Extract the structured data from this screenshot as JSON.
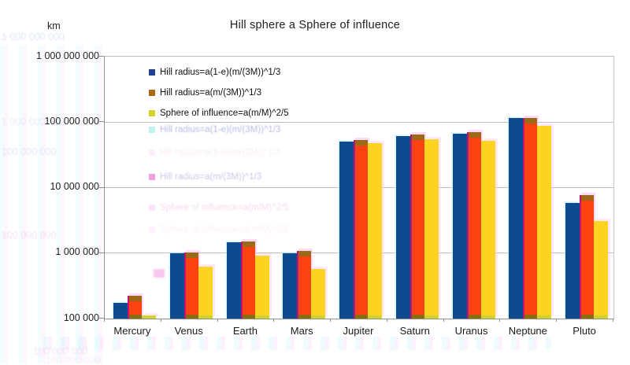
{
  "header": {
    "unit_label": "km",
    "title": "Hill sphere a Sphere of influence"
  },
  "chart_data": {
    "type": "bar",
    "y_scale": "log10",
    "title": "Hill sphere a Sphere of influence",
    "ylabel": "km",
    "xlabel": "",
    "ylim": [
      100000,
      1000000000
    ],
    "ytick_values": [
      1000000000,
      100000000,
      10000000,
      1000000,
      100000
    ],
    "ytick_labels": [
      "1 000 000 000",
      "100 000 000",
      "10 000 000",
      "1 000 000",
      "100 000"
    ],
    "grid": true,
    "legend_position": "inside-top-left",
    "categories": [
      "Mercury",
      "Venus",
      "Earth",
      "Mars",
      "Jupiter",
      "Saturn",
      "Uranus",
      "Neptune",
      "Pluto"
    ],
    "series": [
      {
        "name": "Hill radius=a(1-e)(m/(3M))^1/3",
        "color": "#0d4a8e",
        "swatch_color": "#21419b",
        "values_km": [
          175000,
          1004000,
          1472000,
          983000,
          50600000,
          61500000,
          66900000,
          114800000,
          5800000
        ]
      },
      {
        "name": "Hill radius=a(m/(3M))^1/3",
        "color": "#fb4310",
        "swatch_color": "#a96a10",
        "values_km": [
          221000,
          1011000,
          1497000,
          1084000,
          53200000,
          65200000,
          70100000,
          115900000,
          7700000
        ]
      },
      {
        "name": "Sphere of influence=a(m/M)^2/5",
        "color": "#fdd321",
        "swatch_color": "#d6d62a",
        "values_km": [
          112000,
          616000,
          925000,
          577000,
          48200000,
          54900000,
          51700000,
          86800000,
          3100000
        ]
      }
    ]
  }
}
